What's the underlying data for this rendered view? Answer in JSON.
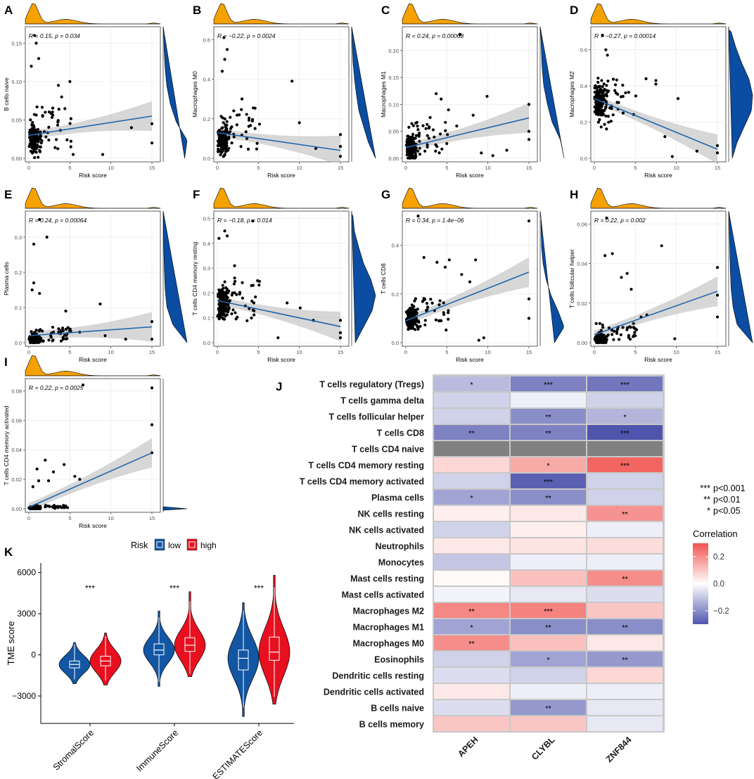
{
  "panels": [
    {
      "letter": "A",
      "ylabel": "B cells naive",
      "xlabel": "Risk score",
      "stat": "R = 0.15, p = 0.034",
      "yticks": [
        "0.00",
        "0.05",
        "0.10",
        "0.15"
      ],
      "xticks": [
        "0",
        "5",
        "10",
        "15"
      ],
      "yrange": [
        0,
        0.165
      ],
      "fit": [
        0.03,
        0.055
      ],
      "seed": 11,
      "cluster": 0.025,
      "spread": 0.025,
      "outliers": [
        [
          0.7,
          0.16
        ],
        [
          0.9,
          0.15
        ],
        [
          1.2,
          0.13
        ],
        [
          0.3,
          0.12
        ],
        [
          3.6,
          0.095
        ],
        [
          5,
          0.1
        ],
        [
          4,
          0.08
        ],
        [
          2,
          0.06
        ],
        [
          12.5,
          0.04
        ],
        [
          15,
          0.045
        ],
        [
          15,
          0.02
        ],
        [
          5.4,
          0.005
        ],
        [
          9,
          0.005
        ]
      ],
      "ydens": [
        0.9,
        1,
        0.55,
        0.3,
        0.15,
        0.08,
        0.04,
        0.02
      ]
    },
    {
      "letter": "B",
      "ylabel": "Macrophages M0",
      "xlabel": "Risk score",
      "stat": "R = −0.22, p = 0.0024",
      "yticks": [
        "0.0",
        "0.2",
        "0.4",
        "0.6"
      ],
      "xticks": [
        "0",
        "5",
        "10",
        "15"
      ],
      "yrange": [
        0,
        0.64
      ],
      "fit": [
        0.13,
        0.04
      ],
      "seed": 23,
      "cluster": 0.09,
      "spread": 0.1,
      "outliers": [
        [
          0.8,
          0.61
        ],
        [
          1.2,
          0.55
        ],
        [
          0.9,
          0.5
        ],
        [
          0.6,
          0.44
        ],
        [
          9.1,
          0.39
        ],
        [
          3,
          0.3
        ],
        [
          2,
          0.24
        ],
        [
          10,
          0.18
        ],
        [
          15,
          0.12
        ],
        [
          15,
          0.06
        ],
        [
          15,
          0.01
        ],
        [
          12,
          0.05
        ]
      ],
      "ydens": [
        1,
        0.7,
        0.5,
        0.3,
        0.2,
        0.12,
        0.06,
        0.03,
        0.02
      ]
    },
    {
      "letter": "C",
      "ylabel": "Macrophages M1",
      "xlabel": "Risk score",
      "stat": "R = 0.24, p = 0.00068",
      "yticks": [
        "0.00",
        "0.05",
        "0.10",
        "0.15",
        "0.20"
      ],
      "xticks": [
        "0",
        "5",
        "10",
        "15"
      ],
      "yrange": [
        0,
        0.235
      ],
      "fit": [
        0.02,
        0.075
      ],
      "seed": 31,
      "cluster": 0.02,
      "spread": 0.03,
      "outliers": [
        [
          6.6,
          0.23
        ],
        [
          3.7,
          0.12
        ],
        [
          4.3,
          0.11
        ],
        [
          9.9,
          0.115
        ],
        [
          5.2,
          0.09
        ],
        [
          8.2,
          0.08
        ],
        [
          6.2,
          0.06
        ],
        [
          15,
          0.1
        ],
        [
          15,
          0.05
        ],
        [
          15,
          0.035
        ],
        [
          12.3,
          0.015
        ],
        [
          10.6,
          0.005
        ],
        [
          9.2,
          0.01
        ]
      ],
      "ydens": [
        1,
        0.85,
        0.5,
        0.3,
        0.15,
        0.08,
        0.05,
        0.02
      ]
    },
    {
      "letter": "D",
      "ylabel": "Macrophages M2",
      "xlabel": "Risk score",
      "stat": "R = −0.27, p = 0.00014",
      "yticks": [
        "0.0",
        "0.2",
        "0.4",
        "0.6"
      ],
      "xticks": [
        "0",
        "5",
        "10",
        "15"
      ],
      "yrange": [
        0,
        0.7
      ],
      "fit": [
        0.33,
        0.05
      ],
      "seed": 47,
      "cluster": 0.32,
      "spread": 0.13,
      "outliers": [
        [
          1,
          0.68
        ],
        [
          1.4,
          0.6
        ],
        [
          1.6,
          0.57
        ],
        [
          6.3,
          0.44
        ],
        [
          7.5,
          0.43
        ],
        [
          7.5,
          0.41
        ],
        [
          8.6,
          0.12
        ],
        [
          10.2,
          0.33
        ],
        [
          15,
          0.07
        ],
        [
          15,
          0.03
        ],
        [
          9.5,
          0.01
        ],
        [
          12.5,
          0.04
        ]
      ],
      "ydens": [
        0.15,
        0.35,
        0.65,
        0.95,
        1,
        0.85,
        0.55,
        0.3,
        0.1
      ]
    },
    {
      "letter": "E",
      "ylabel": "Plasma cells",
      "xlabel": "Risk score",
      "stat": "R = 0.24, p = 0.00064",
      "yticks": [
        "0.0",
        "0.1",
        "0.2",
        "0.3"
      ],
      "xticks": [
        "0",
        "5",
        "10",
        "15"
      ],
      "yrange": [
        0,
        0.36
      ],
      "fit": [
        0.02,
        0.045
      ],
      "seed": 53,
      "cluster": 0.01,
      "spread": 0.018,
      "outliers": [
        [
          1.3,
          0.35
        ],
        [
          2.2,
          0.3
        ],
        [
          0.6,
          0.28
        ],
        [
          0.6,
          0.17
        ],
        [
          1.3,
          0.14
        ],
        [
          0.4,
          0.15
        ],
        [
          4.5,
          0.09
        ],
        [
          8.7,
          0.11
        ],
        [
          9.3,
          0.02
        ],
        [
          15,
          0.06
        ],
        [
          15,
          0.01
        ],
        [
          11.8,
          0.01
        ],
        [
          6.2,
          0.03
        ]
      ],
      "ydens": [
        1,
        0.4,
        0.15,
        0.08,
        0.05,
        0.03,
        0.02,
        0.01
      ]
    },
    {
      "letter": "F",
      "ylabel": "T cells CD4 memory resting",
      "xlabel": "Risk score",
      "stat": "R = −0.18, p = 0.014",
      "yticks": [
        "0.0",
        "0.1",
        "0.2",
        "0.3",
        "0.4",
        "0.5"
      ],
      "xticks": [
        "0",
        "5",
        "10",
        "15"
      ],
      "yrange": [
        0,
        0.51
      ],
      "fit": [
        0.17,
        0.065
      ],
      "seed": 61,
      "cluster": 0.16,
      "spread": 0.085,
      "outliers": [
        [
          0.2,
          0.42
        ],
        [
          0.9,
          0.45
        ],
        [
          1.2,
          0.43
        ],
        [
          4.3,
          0.49
        ],
        [
          2.1,
          0.31
        ],
        [
          8.5,
          0.16
        ],
        [
          10.1,
          0.14
        ],
        [
          11.7,
          0.09
        ],
        [
          15,
          0.09
        ],
        [
          15,
          0.04
        ],
        [
          15,
          0.02
        ],
        [
          7.4,
          0.02
        ]
      ],
      "ydens": [
        0.15,
        0.5,
        0.85,
        1,
        0.8,
        0.5,
        0.3,
        0.12,
        0.05
      ]
    },
    {
      "letter": "G",
      "ylabel": "T cells CD8",
      "xlabel": "Risk score",
      "stat": "R = 0.34, p = 1.4e−06",
      "yticks": [
        "0.0",
        "0.2",
        "0.4"
      ],
      "xticks": [
        "0",
        "5",
        "10",
        "15"
      ],
      "yrange": [
        0,
        0.52
      ],
      "fit": [
        0.09,
        0.29
      ],
      "seed": 71,
      "cluster": 0.1,
      "spread": 0.06,
      "outliers": [
        [
          1.5,
          0.52
        ],
        [
          2.2,
          0.35
        ],
        [
          3.8,
          0.33
        ],
        [
          5.3,
          0.34
        ],
        [
          8.5,
          0.34
        ],
        [
          4.8,
          0.31
        ],
        [
          6.8,
          0.28
        ],
        [
          7.8,
          0.25
        ],
        [
          15,
          0.5
        ],
        [
          15,
          0.18
        ],
        [
          15,
          0.1
        ],
        [
          9.5,
          0.02
        ],
        [
          8.9,
          0.01
        ]
      ],
      "ydens": [
        0.6,
        1,
        0.75,
        0.45,
        0.25,
        0.12,
        0.06,
        0.04,
        0.03
      ]
    },
    {
      "letter": "H",
      "ylabel": "T cells follicular helper",
      "xlabel": "Risk score",
      "stat": "R = 0.22, p = 0.002",
      "yticks": [
        "0.00",
        "0.02",
        "0.04",
        "0.06"
      ],
      "xticks": [
        "0",
        "5",
        "10",
        "15"
      ],
      "yrange": [
        0,
        0.064
      ],
      "fit": [
        0.004,
        0.026
      ],
      "seed": 83,
      "cluster": 0.002,
      "spread": 0.004,
      "outliers": [
        [
          1.5,
          0.063
        ],
        [
          2.2,
          0.045
        ],
        [
          1.3,
          0.044
        ],
        [
          3.3,
          0.033
        ],
        [
          4,
          0.035
        ],
        [
          8.2,
          0.049
        ],
        [
          4.5,
          0.027
        ],
        [
          5.7,
          0.013
        ],
        [
          6.4,
          0.014
        ],
        [
          15,
          0.038
        ],
        [
          15,
          0.024
        ],
        [
          15,
          0.013
        ],
        [
          9.8,
          0.002
        ]
      ],
      "ydens": [
        1,
        0.35,
        0.18,
        0.1,
        0.07,
        0.05,
        0.03,
        0.02
      ]
    },
    {
      "letter": "I",
      "ylabel": "T cells CD4 memory activated",
      "xlabel": "Risk score",
      "stat": "R = 0.22, p = 0.0025",
      "yticks": [
        "0.00",
        "0.02",
        "0.04",
        "0.06",
        "0.08"
      ],
      "xticks": [
        "0",
        "5",
        "10",
        "15"
      ],
      "yrange": [
        0,
        0.085
      ],
      "fit": [
        0.001,
        0.038
      ],
      "seed": 97,
      "cluster": 0.0005,
      "spread": 0.001,
      "outliers": [
        [
          6.6,
          0.084
        ],
        [
          15,
          0.082
        ],
        [
          15,
          0.057
        ],
        [
          15,
          0.038
        ],
        [
          2,
          0.033
        ],
        [
          4.3,
          0.03
        ],
        [
          1,
          0.027
        ],
        [
          3,
          0.025
        ],
        [
          5.6,
          0.022
        ],
        [
          6.2,
          0.02
        ],
        [
          1.2,
          0.019
        ],
        [
          2.4,
          0.019
        ],
        [
          0.5,
          0.015
        ]
      ],
      "ydens": [
        1,
        0.03,
        0.02,
        0.015,
        0.01,
        0.01,
        0.005
      ]
    }
  ],
  "violin": {
    "letter": "K",
    "ylabel": "TME score",
    "legend_title": "Risk",
    "legend_low": "low",
    "legend_high": "high",
    "yticks": [
      "6000",
      "3000",
      "0",
      "−3000"
    ],
    "groups": [
      {
        "name": "StromalScore",
        "sig": "***",
        "low": {
          "median": -700,
          "q1": -950,
          "q3": -450,
          "min": -2100,
          "max": 900
        },
        "high": {
          "median": -450,
          "q1": -800,
          "q3": -100,
          "min": -2200,
          "max": 1600
        }
      },
      {
        "name": "ImmuneScore",
        "sig": "***",
        "low": {
          "median": 350,
          "q1": 0,
          "q3": 800,
          "min": -2300,
          "max": 3200
        },
        "high": {
          "median": 700,
          "q1": 250,
          "q3": 1250,
          "min": -1600,
          "max": 4600
        }
      },
      {
        "name": "ESTIMATEScore",
        "sig": "***",
        "low": {
          "median": -250,
          "q1": -1100,
          "q3": 350,
          "min": -4500,
          "max": 3800
        },
        "high": {
          "median": 200,
          "q1": -400,
          "q3": 1300,
          "min": -3600,
          "max": 5800
        }
      }
    ]
  },
  "heatmap": {
    "letter": "J",
    "columns": [
      "APEH",
      "CLYBL",
      "ZNF844"
    ],
    "rows": [
      {
        "label": "T cells regulatory (Tregs)",
        "values": [
          -0.12,
          -0.22,
          -0.24
        ],
        "stars": [
          "*",
          "***",
          "***"
        ]
      },
      {
        "label": "T cells gamma delta",
        "values": [
          -0.08,
          -0.03,
          -0.08
        ],
        "stars": [
          "",
          "",
          ""
        ]
      },
      {
        "label": "T cells follicular helper",
        "values": [
          -0.08,
          -0.2,
          -0.13
        ],
        "stars": [
          "",
          "**",
          "*"
        ]
      },
      {
        "label": "T cells CD8",
        "values": [
          -0.22,
          -0.22,
          -0.34
        ],
        "stars": [
          "**",
          "**",
          "***"
        ]
      },
      {
        "label": "T cells CD4 naive",
        "values": [
          null,
          null,
          null
        ],
        "stars": [
          "",
          "",
          ""
        ]
      },
      {
        "label": "T cells CD4 memory resting",
        "values": [
          0.07,
          0.15,
          0.27
        ],
        "stars": [
          "",
          "*",
          "***"
        ]
      },
      {
        "label": "T cells CD4 memory activated",
        "values": [
          -0.08,
          -0.28,
          -0.08
        ],
        "stars": [
          "",
          "***",
          ""
        ]
      },
      {
        "label": "Plasma cells",
        "values": [
          -0.16,
          -0.2,
          -0.08
        ],
        "stars": [
          "*",
          "**",
          ""
        ]
      },
      {
        "label": "NK cells resting",
        "values": [
          0.03,
          0.04,
          0.19
        ],
        "stars": [
          "",
          "",
          "**"
        ]
      },
      {
        "label": "NK cells activated",
        "values": [
          -0.08,
          0.03,
          -0.03
        ],
        "stars": [
          "",
          "",
          ""
        ]
      },
      {
        "label": "Neutrophils",
        "values": [
          0.04,
          0.05,
          0.06
        ],
        "stars": [
          "",
          "",
          ""
        ]
      },
      {
        "label": "Monocytes",
        "values": [
          -0.1,
          -0.03,
          -0.03
        ],
        "stars": [
          "",
          "",
          ""
        ]
      },
      {
        "label": "Mast cells resting",
        "values": [
          0.01,
          0.11,
          0.2
        ],
        "stars": [
          "",
          "",
          "**"
        ]
      },
      {
        "label": "Mast cells activated",
        "values": [
          -0.02,
          -0.04,
          -0.06
        ],
        "stars": [
          "",
          "",
          ""
        ]
      },
      {
        "label": "Macrophages M2",
        "values": [
          0.21,
          0.22,
          0.1
        ],
        "stars": [
          "**",
          "***",
          ""
        ]
      },
      {
        "label": "Macrophages M1",
        "values": [
          -0.16,
          -0.2,
          -0.2
        ],
        "stars": [
          "*",
          "**",
          "**"
        ]
      },
      {
        "label": "Macrophages M0",
        "values": [
          0.2,
          0.11,
          0.04
        ],
        "stars": [
          "**",
          "",
          ""
        ]
      },
      {
        "label": "Eosinophils",
        "values": [
          -0.08,
          -0.16,
          -0.18
        ],
        "stars": [
          "",
          "*",
          "**"
        ]
      },
      {
        "label": "Dendritic cells resting",
        "values": [
          -0.06,
          -0.08,
          0.07
        ],
        "stars": [
          "",
          "",
          ""
        ]
      },
      {
        "label": "Dendritic cells activated",
        "values": [
          0.04,
          -0.03,
          -0.03
        ],
        "stars": [
          "",
          "",
          ""
        ]
      },
      {
        "label": "B cells naive",
        "values": [
          -0.06,
          -0.18,
          -0.04
        ],
        "stars": [
          "",
          "**",
          ""
        ]
      },
      {
        "label": "B cells memory",
        "values": [
          0.1,
          0.1,
          -0.04
        ],
        "stars": [
          "",
          "",
          ""
        ]
      }
    ],
    "sig_legend": [
      {
        "stars": "***",
        "text": "p<0.001"
      },
      {
        "stars": "**",
        "text": "p<0.01"
      },
      {
        "stars": "*",
        "text": "p<0.05"
      }
    ],
    "colorbar_title": "Correlation",
    "colorbar_ticks": [
      "0.2",
      "0.0",
      "−0.2"
    ],
    "colors": {
      "low": "#4f55ad",
      "mid": "#ffffff",
      "high": "#f0544f",
      "na": "#808080"
    }
  },
  "colors": {
    "orange": "#f5a100",
    "blue": "#0a4da2",
    "fit": "#2166ac",
    "low": "#1256a4",
    "high": "#e8101f"
  }
}
